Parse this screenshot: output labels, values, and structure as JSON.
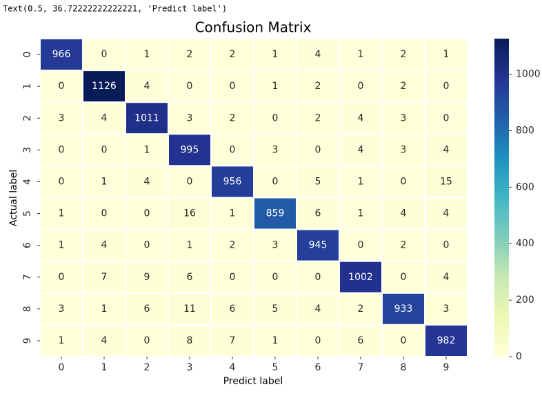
{
  "output_text": "Text(0.5, 36.72222222222221, 'Predict label')",
  "chart_data": {
    "type": "heatmap",
    "title": "Confusion Matrix",
    "xlabel": "Predict label",
    "ylabel": "Actual label",
    "x_categories": [
      "0",
      "1",
      "2",
      "3",
      "4",
      "5",
      "6",
      "7",
      "8",
      "9"
    ],
    "y_categories": [
      "0",
      "1",
      "2",
      "3",
      "4",
      "5",
      "6",
      "7",
      "8",
      "9"
    ],
    "values": [
      [
        966,
        0,
        1,
        2,
        2,
        1,
        4,
        1,
        2,
        1
      ],
      [
        0,
        1126,
        4,
        0,
        0,
        1,
        2,
        0,
        2,
        0
      ],
      [
        3,
        4,
        1011,
        3,
        2,
        0,
        2,
        4,
        3,
        0
      ],
      [
        0,
        0,
        1,
        995,
        0,
        3,
        0,
        4,
        3,
        4
      ],
      [
        0,
        1,
        4,
        0,
        956,
        0,
        5,
        1,
        0,
        15
      ],
      [
        1,
        0,
        0,
        16,
        1,
        859,
        6,
        1,
        4,
        4
      ],
      [
        1,
        4,
        0,
        1,
        2,
        3,
        945,
        0,
        2,
        0
      ],
      [
        0,
        7,
        9,
        6,
        0,
        0,
        0,
        1002,
        0,
        4
      ],
      [
        3,
        1,
        6,
        11,
        6,
        5,
        4,
        2,
        933,
        3
      ],
      [
        1,
        4,
        0,
        8,
        7,
        1,
        0,
        6,
        0,
        982
      ]
    ],
    "colormap": [
      "#ffffd9",
      "#edf8b1",
      "#c7e9b4",
      "#7fcdbb",
      "#41b6c4",
      "#1d91c0",
      "#225ea8",
      "#253494",
      "#081d58"
    ],
    "clim": [
      0,
      1126
    ],
    "colorbar_ticks": [
      0,
      200,
      400,
      600,
      800,
      1000
    ]
  }
}
